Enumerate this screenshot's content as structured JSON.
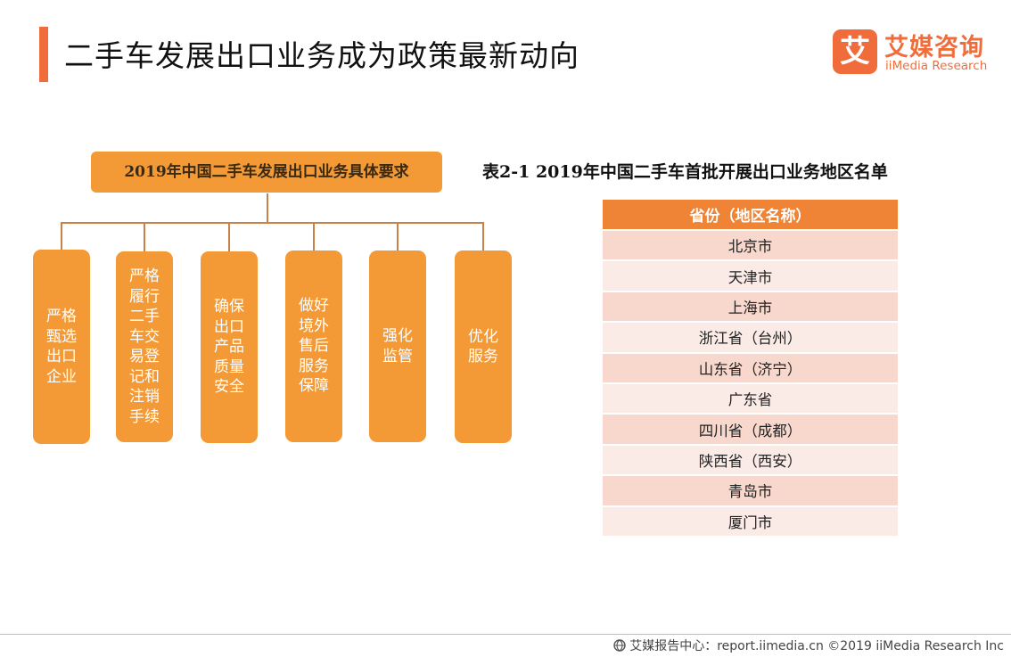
{
  "page": {
    "title": "二手车发展出口业务成为政策最新动向"
  },
  "brand": {
    "logo_mark": "艾",
    "name_cn": "艾媒咨询",
    "name_en": "iiMedia Research",
    "accent": "#f06d3b",
    "orange": "#f39a37"
  },
  "org_chart": {
    "header": "2019年中国二手车发展出口业务具体要求",
    "items": [
      "严格甄选出口企业",
      "严格履行二手车交易登记和注销手续",
      "确保出口产品质量安全",
      "做好境外售后服务保障",
      "强化监管",
      "优化服务"
    ]
  },
  "table": {
    "caption": "表2-1 2019年中国二手车首批开展出口业务地区名单",
    "header": "省份（地区名称）",
    "header_color": "#f08436",
    "rows": [
      "北京市",
      "天津市",
      "上海市",
      "浙江省（台州）",
      "山东省（济宁）",
      "广东省",
      "四川省（成都）",
      "陕西省（西安）",
      "青岛市",
      "厦门市"
    ]
  },
  "footer": {
    "source": "艾媒报告中心：report.iimedia.cn  ©2019  iiMedia Research  Inc"
  }
}
